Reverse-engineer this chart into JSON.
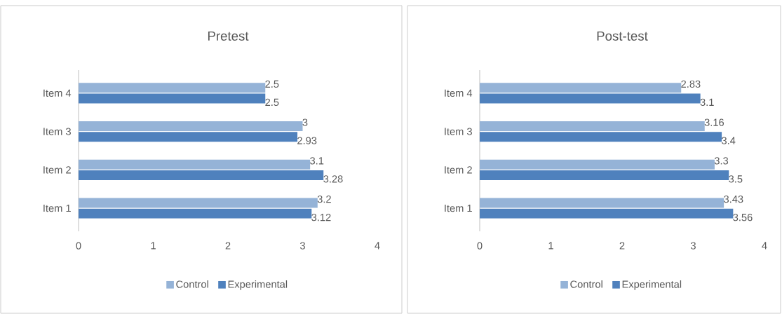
{
  "chart_data": [
    {
      "type": "bar",
      "orientation": "horizontal",
      "title": "Pretest",
      "categories": [
        "Item 4",
        "Item 3",
        "Item 2",
        "Item 1"
      ],
      "series": [
        {
          "name": "Control",
          "color": "#95b3d7",
          "values": [
            2.5,
            3,
            3.1,
            3.2
          ]
        },
        {
          "name": "Experimental",
          "color": "#4f81bd",
          "values": [
            2.5,
            2.93,
            3.28,
            3.12
          ]
        }
      ],
      "xlim": [
        0,
        4
      ],
      "xticks": [
        0,
        1,
        2,
        3,
        4
      ],
      "data_labels": true,
      "legend": "bottom"
    },
    {
      "type": "bar",
      "orientation": "horizontal",
      "title": "Post-test",
      "categories": [
        "Item 4",
        "Item 3",
        "Item 2",
        "Item 1"
      ],
      "series": [
        {
          "name": "Control",
          "color": "#95b3d7",
          "values": [
            2.83,
            3.16,
            3.3,
            3.43
          ]
        },
        {
          "name": "Experimental",
          "color": "#4f81bd",
          "values": [
            3.1,
            3.4,
            3.5,
            3.56
          ]
        }
      ],
      "xlim": [
        0,
        4
      ],
      "xticks": [
        0,
        1,
        2,
        3,
        4
      ],
      "data_labels": true,
      "legend": "bottom"
    }
  ]
}
